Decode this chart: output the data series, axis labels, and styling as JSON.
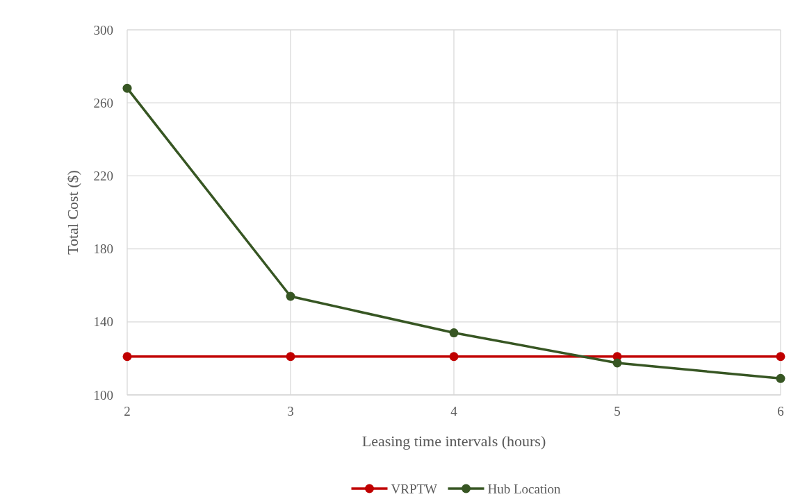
{
  "chart_data": {
    "type": "line",
    "xlabel": "Leasing time intervals (hours)",
    "ylabel": "Total Cost ($)",
    "x": [
      2,
      3,
      4,
      5,
      6
    ],
    "series": [
      {
        "name": "VRPTW",
        "color": "#c00000",
        "values": [
          121,
          121,
          121,
          121,
          121
        ]
      },
      {
        "name": "Hub Location",
        "color": "#375623",
        "values": [
          268,
          154,
          134,
          117.5,
          109
        ]
      }
    ],
    "xlim": [
      2,
      6
    ],
    "xticks": [
      2,
      3,
      4,
      5,
      6
    ],
    "ylim": [
      100,
      300
    ],
    "yticks": [
      100,
      140,
      180,
      220,
      260,
      300
    ],
    "grid": true,
    "legend": "bottom",
    "marker": "circle",
    "line_style": "solid"
  }
}
